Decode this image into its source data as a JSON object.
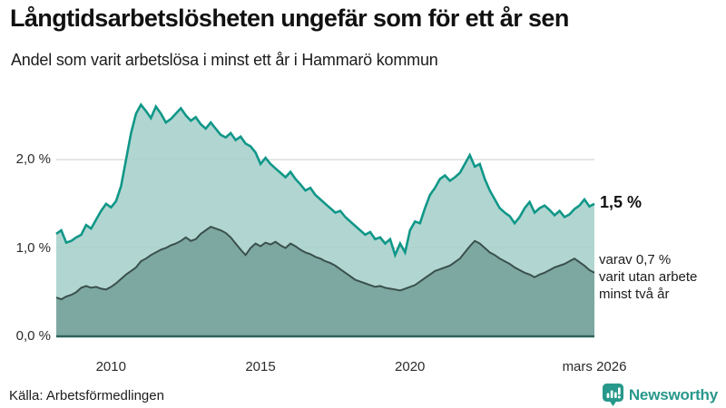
{
  "header": {
    "title": "Långtidsarbetslösheten ungefär som för ett år sen",
    "subtitle": "Andel som varit arbetslösa i minst ett år i Hammarö kommun"
  },
  "chart_data": {
    "type": "area",
    "title": "Långtidsarbetslösheten ungefär som för ett år sen",
    "subtitle": "Andel som varit arbetslösa i minst ett år i Hammarö kommun",
    "x_unit": "decimal_year_monthly",
    "x": {
      "start": 2008.17,
      "step_months": 2,
      "count": 109
    },
    "xlim": [
      2008.17,
      2026.17
    ],
    "ylim": [
      0,
      2.7
    ],
    "grid": "horizontal",
    "grid_color": "#c9cdcd",
    "baseline_color": "#2f635b",
    "yticks": [
      {
        "value": 0,
        "label": "0,0 %"
      },
      {
        "value": 1,
        "label": "1,0 %"
      },
      {
        "value": 2,
        "label": "2,0 %"
      }
    ],
    "xticks": [
      {
        "value": 2010,
        "label": "2010"
      },
      {
        "value": 2015,
        "label": "2015"
      },
      {
        "value": 2020,
        "label": "2020"
      },
      {
        "value": 2026.17,
        "label": "mars 2026"
      }
    ],
    "series": [
      {
        "name": "Andel som varit arbetslösa minst ett år",
        "line_color": "#109788",
        "fill_color": "#a9d2cc",
        "latest_value_pct": 1.5,
        "values": [
          1.16,
          1.2,
          1.06,
          1.08,
          1.12,
          1.15,
          1.26,
          1.22,
          1.32,
          1.42,
          1.5,
          1.46,
          1.53,
          1.7,
          2.0,
          2.3,
          2.52,
          2.62,
          2.55,
          2.47,
          2.6,
          2.52,
          2.42,
          2.46,
          2.52,
          2.58,
          2.5,
          2.44,
          2.48,
          2.4,
          2.35,
          2.42,
          2.35,
          2.28,
          2.25,
          2.3,
          2.22,
          2.26,
          2.18,
          2.15,
          2.08,
          1.95,
          2.02,
          1.95,
          1.9,
          1.85,
          1.8,
          1.86,
          1.78,
          1.72,
          1.65,
          1.68,
          1.6,
          1.55,
          1.5,
          1.45,
          1.4,
          1.42,
          1.35,
          1.3,
          1.25,
          1.2,
          1.15,
          1.18,
          1.1,
          1.12,
          1.05,
          1.1,
          0.92,
          1.05,
          0.95,
          1.2,
          1.3,
          1.28,
          1.45,
          1.6,
          1.68,
          1.78,
          1.82,
          1.76,
          1.8,
          1.85,
          1.95,
          2.05,
          1.92,
          1.95,
          1.78,
          1.65,
          1.55,
          1.45,
          1.4,
          1.36,
          1.28,
          1.35,
          1.45,
          1.52,
          1.4,
          1.45,
          1.48,
          1.43,
          1.37,
          1.42,
          1.35,
          1.38,
          1.44,
          1.48,
          1.55,
          1.47,
          1.5
        ]
      },
      {
        "name": "varav utan arbete minst två år",
        "line_color": "#3a504c",
        "fill_color": "#7da8a1",
        "latest_value_pct": 0.7,
        "values": [
          0.44,
          0.42,
          0.45,
          0.47,
          0.5,
          0.55,
          0.57,
          0.55,
          0.56,
          0.54,
          0.53,
          0.56,
          0.6,
          0.65,
          0.7,
          0.74,
          0.78,
          0.85,
          0.88,
          0.92,
          0.95,
          0.98,
          1.0,
          1.03,
          1.05,
          1.08,
          1.12,
          1.08,
          1.1,
          1.16,
          1.2,
          1.24,
          1.22,
          1.2,
          1.17,
          1.12,
          1.05,
          0.98,
          0.92,
          1.0,
          1.05,
          1.02,
          1.06,
          1.04,
          1.07,
          1.03,
          1.0,
          1.05,
          1.02,
          0.98,
          0.95,
          0.93,
          0.9,
          0.88,
          0.85,
          0.83,
          0.8,
          0.76,
          0.72,
          0.68,
          0.64,
          0.62,
          0.6,
          0.58,
          0.56,
          0.57,
          0.55,
          0.54,
          0.53,
          0.52,
          0.54,
          0.56,
          0.58,
          0.62,
          0.66,
          0.7,
          0.74,
          0.76,
          0.78,
          0.8,
          0.84,
          0.88,
          0.95,
          1.02,
          1.08,
          1.05,
          1.0,
          0.95,
          0.92,
          0.88,
          0.85,
          0.82,
          0.78,
          0.75,
          0.72,
          0.7,
          0.67,
          0.7,
          0.72,
          0.75,
          0.78,
          0.8,
          0.82,
          0.85,
          0.88,
          0.84,
          0.8,
          0.75,
          0.72
        ]
      }
    ],
    "annotations": [
      {
        "text": "1,5 %",
        "bold": true,
        "series": 0
      },
      {
        "lines": [
          "varav 0,7 %",
          "varit utan arbete",
          "minst två år"
        ],
        "series": 1
      }
    ],
    "legend_position": "none"
  },
  "annotations": {
    "latest": "1,5 %",
    "breakdown_line1": "varav 0,7 %",
    "breakdown_line2": "varit utan arbete",
    "breakdown_line3": "minst två år"
  },
  "footer": {
    "source": "Källa: Arbetsförmedlingen",
    "brand": "Newsworthy",
    "brand_color": "#27988b"
  }
}
